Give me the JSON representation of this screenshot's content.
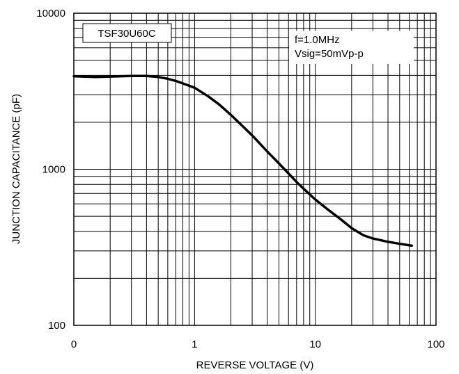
{
  "chart_data": {
    "type": "line",
    "title": "",
    "xlabel": "REVERSE VOLTAGE (V)",
    "ylabel": "JUNCTION CAPACITANCE (pF)",
    "xscale": "log",
    "yscale": "log",
    "xlim": [
      0.1,
      100
    ],
    "ylim": [
      100,
      10000
    ],
    "grid": true,
    "x_tick_labels": [
      "0",
      "1",
      "10",
      "100"
    ],
    "y_tick_labels": [
      "100",
      "1000",
      "10000"
    ],
    "annotations": {
      "device": "TSF30U60C",
      "condition_1": "f=1.0MHz",
      "condition_2": "Vsig=50mVp-p"
    },
    "series": [
      {
        "x": [
          0.1,
          0.15,
          0.2,
          0.3,
          0.4,
          0.5,
          0.6,
          0.7,
          0.8,
          1.0,
          1.3,
          1.6,
          2.0,
          2.5,
          3.0,
          4.0,
          5.0,
          6.0,
          7.0,
          8.0,
          10.0,
          13.0,
          16.0,
          20.0,
          25.0,
          30.0,
          40.0,
          50.0,
          63.0
        ],
        "values": [
          3950,
          3900,
          3930,
          3960,
          3960,
          3900,
          3800,
          3680,
          3550,
          3330,
          2930,
          2600,
          2230,
          1890,
          1650,
          1300,
          1090,
          940,
          830,
          750,
          640,
          545,
          483,
          420,
          378,
          360,
          343,
          333,
          324
        ]
      }
    ]
  }
}
